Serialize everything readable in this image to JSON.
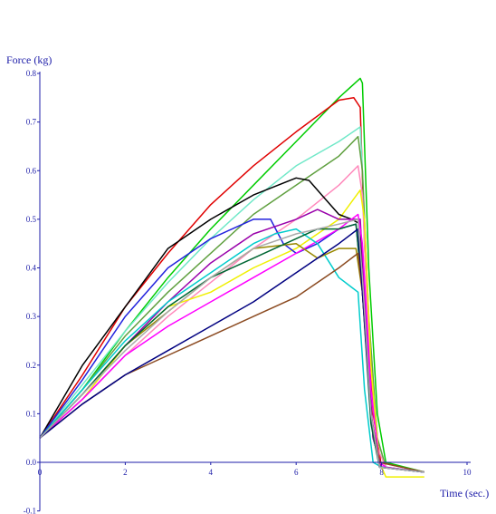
{
  "chart_data": {
    "type": "line",
    "ylabel": "Force    (kg)",
    "xlabel": "Time (sec.)",
    "xlim": [
      0,
      10
    ],
    "ylim": [
      -0.1,
      0.8
    ],
    "x_ticks": [
      "0",
      "2",
      "4",
      "6",
      "8",
      "10"
    ],
    "y_ticks": [
      "-0.1",
      "0.0",
      "0.1",
      "0.2",
      "0.3",
      "0.4",
      "0.5",
      "0.6",
      "0.7",
      "0.8"
    ],
    "grid": false,
    "legend": "none",
    "axis_color": "#1c1ca8",
    "series": [
      {
        "color": "#00cc00",
        "points": [
          [
            0,
            0.05
          ],
          [
            1,
            0.15
          ],
          [
            2,
            0.27
          ],
          [
            3,
            0.38
          ],
          [
            4,
            0.48
          ],
          [
            5,
            0.57
          ],
          [
            6,
            0.66
          ],
          [
            7,
            0.75
          ],
          [
            7.5,
            0.79
          ],
          [
            7.55,
            0.78
          ],
          [
            7.7,
            0.4
          ],
          [
            7.9,
            0.1
          ],
          [
            8.1,
            0.0
          ],
          [
            9,
            -0.02
          ]
        ]
      },
      {
        "color": "#e00000",
        "points": [
          [
            0,
            0.05
          ],
          [
            1,
            0.18
          ],
          [
            2,
            0.32
          ],
          [
            3,
            0.43
          ],
          [
            4,
            0.53
          ],
          [
            5,
            0.61
          ],
          [
            6,
            0.68
          ],
          [
            7,
            0.745
          ],
          [
            7.35,
            0.75
          ],
          [
            7.5,
            0.73
          ],
          [
            7.6,
            0.45
          ],
          [
            7.8,
            0.1
          ],
          [
            8,
            -0.01
          ],
          [
            9,
            -0.02
          ]
        ]
      },
      {
        "color": "#70e8c8",
        "points": [
          [
            0,
            0.05
          ],
          [
            1,
            0.16
          ],
          [
            2,
            0.27
          ],
          [
            3,
            0.37
          ],
          [
            4,
            0.46
          ],
          [
            5,
            0.54
          ],
          [
            6,
            0.61
          ],
          [
            7,
            0.66
          ],
          [
            7.5,
            0.69
          ],
          [
            7.55,
            0.6
          ],
          [
            7.7,
            0.3
          ],
          [
            7.9,
            0.05
          ],
          [
            8.1,
            -0.01
          ],
          [
            9,
            -0.02
          ]
        ]
      },
      {
        "color": "#60a040",
        "points": [
          [
            0,
            0.05
          ],
          [
            1,
            0.15
          ],
          [
            2,
            0.26
          ],
          [
            3,
            0.35
          ],
          [
            4,
            0.43
          ],
          [
            5,
            0.51
          ],
          [
            6,
            0.57
          ],
          [
            7,
            0.63
          ],
          [
            7.45,
            0.67
          ],
          [
            7.55,
            0.6
          ],
          [
            7.7,
            0.3
          ],
          [
            7.9,
            0.05
          ],
          [
            8.1,
            -0.01
          ],
          [
            9,
            -0.02
          ]
        ]
      },
      {
        "color": "#ff88bb",
        "points": [
          [
            0,
            0.05
          ],
          [
            1,
            0.13
          ],
          [
            2,
            0.22
          ],
          [
            3,
            0.3
          ],
          [
            4,
            0.37
          ],
          [
            5,
            0.44
          ],
          [
            6,
            0.5
          ],
          [
            7,
            0.57
          ],
          [
            7.45,
            0.61
          ],
          [
            7.55,
            0.55
          ],
          [
            7.7,
            0.25
          ],
          [
            7.9,
            0.03
          ],
          [
            8.1,
            -0.01
          ],
          [
            9,
            -0.02
          ]
        ]
      },
      {
        "color": "#f0f000",
        "points": [
          [
            0,
            0.05
          ],
          [
            1,
            0.13
          ],
          [
            2,
            0.24
          ],
          [
            3,
            0.32
          ],
          [
            4,
            0.35
          ],
          [
            5,
            0.4
          ],
          [
            6,
            0.44
          ],
          [
            7,
            0.5
          ],
          [
            7.5,
            0.56
          ],
          [
            7.6,
            0.5
          ],
          [
            7.75,
            0.2
          ],
          [
            7.95,
            0.0
          ],
          [
            8.1,
            -0.03
          ],
          [
            9,
            -0.03
          ]
        ]
      },
      {
        "color": "#000000",
        "points": [
          [
            0,
            0.05
          ],
          [
            1,
            0.2
          ],
          [
            2,
            0.32
          ],
          [
            3,
            0.44
          ],
          [
            4,
            0.5
          ],
          [
            5,
            0.55
          ],
          [
            6,
            0.585
          ],
          [
            6.3,
            0.58
          ],
          [
            6.6,
            0.55
          ],
          [
            7,
            0.51
          ],
          [
            7.3,
            0.5
          ],
          [
            7.5,
            0.49
          ],
          [
            7.6,
            0.3
          ],
          [
            7.8,
            0.05
          ],
          [
            8,
            -0.01
          ],
          [
            9,
            -0.02
          ]
        ]
      },
      {
        "color": "#2222dd",
        "points": [
          [
            0,
            0.05
          ],
          [
            1,
            0.17
          ],
          [
            2,
            0.3
          ],
          [
            3,
            0.4
          ],
          [
            4,
            0.46
          ],
          [
            5,
            0.5
          ],
          [
            5.4,
            0.5
          ],
          [
            5.7,
            0.45
          ],
          [
            6,
            0.43
          ],
          [
            6.5,
            0.45
          ],
          [
            7,
            0.48
          ],
          [
            7.4,
            0.49
          ],
          [
            7.55,
            0.35
          ],
          [
            7.8,
            0.05
          ],
          [
            8,
            -0.01
          ],
          [
            9,
            -0.02
          ]
        ]
      },
      {
        "color": "#9900aa",
        "points": [
          [
            0,
            0.05
          ],
          [
            1,
            0.14
          ],
          [
            2,
            0.24
          ],
          [
            3,
            0.33
          ],
          [
            4,
            0.41
          ],
          [
            5,
            0.47
          ],
          [
            6,
            0.5
          ],
          [
            6.5,
            0.52
          ],
          [
            7,
            0.5
          ],
          [
            7.3,
            0.5
          ],
          [
            7.5,
            0.5
          ],
          [
            7.6,
            0.35
          ],
          [
            7.8,
            0.05
          ],
          [
            8,
            -0.01
          ],
          [
            9,
            -0.02
          ]
        ]
      },
      {
        "color": "#ff00ff",
        "points": [
          [
            0,
            0.05
          ],
          [
            1,
            0.13
          ],
          [
            2,
            0.22
          ],
          [
            3,
            0.28
          ],
          [
            4,
            0.33
          ],
          [
            5,
            0.38
          ],
          [
            6,
            0.43
          ],
          [
            7,
            0.48
          ],
          [
            7.45,
            0.51
          ],
          [
            7.55,
            0.45
          ],
          [
            7.75,
            0.15
          ],
          [
            7.95,
            0.0
          ],
          [
            8.1,
            -0.01
          ],
          [
            9,
            -0.02
          ]
        ]
      },
      {
        "color": "#00cccc",
        "points": [
          [
            0,
            0.05
          ],
          [
            1,
            0.15
          ],
          [
            2,
            0.25
          ],
          [
            3,
            0.33
          ],
          [
            4,
            0.39
          ],
          [
            5,
            0.45
          ],
          [
            5.5,
            0.47
          ],
          [
            6,
            0.48
          ],
          [
            6.5,
            0.45
          ],
          [
            7,
            0.38
          ],
          [
            7.3,
            0.36
          ],
          [
            7.45,
            0.35
          ],
          [
            7.6,
            0.15
          ],
          [
            7.8,
            0.0
          ],
          [
            8,
            -0.01
          ],
          [
            9,
            -0.02
          ]
        ]
      },
      {
        "color": "#998800",
        "points": [
          [
            0,
            0.05
          ],
          [
            1,
            0.14
          ],
          [
            2,
            0.24
          ],
          [
            3,
            0.31
          ],
          [
            4,
            0.38
          ],
          [
            5,
            0.44
          ],
          [
            6,
            0.45
          ],
          [
            6.5,
            0.42
          ],
          [
            7,
            0.44
          ],
          [
            7.4,
            0.44
          ],
          [
            7.55,
            0.35
          ],
          [
            7.75,
            0.1
          ],
          [
            7.95,
            0.0
          ],
          [
            9,
            -0.02
          ]
        ]
      },
      {
        "color": "#006633",
        "points": [
          [
            0,
            0.05
          ],
          [
            1,
            0.14
          ],
          [
            2,
            0.24
          ],
          [
            3,
            0.32
          ],
          [
            4,
            0.38
          ],
          [
            5,
            0.42
          ],
          [
            6,
            0.46
          ],
          [
            6.5,
            0.48
          ],
          [
            7,
            0.48
          ],
          [
            7.4,
            0.49
          ],
          [
            7.55,
            0.35
          ],
          [
            7.75,
            0.08
          ],
          [
            7.95,
            -0.01
          ],
          [
            9,
            -0.02
          ]
        ]
      },
      {
        "color": "#8b4a20",
        "points": [
          [
            0,
            0.05
          ],
          [
            1,
            0.12
          ],
          [
            2,
            0.18
          ],
          [
            3,
            0.22
          ],
          [
            4,
            0.26
          ],
          [
            5,
            0.3
          ],
          [
            6,
            0.34
          ],
          [
            7,
            0.4
          ],
          [
            7.45,
            0.43
          ],
          [
            7.55,
            0.35
          ],
          [
            7.75,
            0.1
          ],
          [
            7.95,
            0.0
          ],
          [
            9,
            -0.02
          ]
        ]
      },
      {
        "color": "#000080",
        "points": [
          [
            0,
            0.05
          ],
          [
            1,
            0.12
          ],
          [
            2,
            0.18
          ],
          [
            3,
            0.23
          ],
          [
            4,
            0.28
          ],
          [
            5,
            0.33
          ],
          [
            6,
            0.39
          ],
          [
            7,
            0.45
          ],
          [
            7.45,
            0.48
          ],
          [
            7.55,
            0.35
          ],
          [
            7.75,
            0.1
          ],
          [
            7.95,
            -0.01
          ],
          [
            9,
            -0.02
          ]
        ]
      },
      {
        "color": "#aaaaaa",
        "points": [
          [
            0,
            0.05
          ],
          [
            1,
            0.14
          ],
          [
            2,
            0.23
          ],
          [
            3,
            0.31
          ],
          [
            4,
            0.38
          ],
          [
            5,
            0.44
          ],
          [
            6,
            0.47
          ],
          [
            7,
            0.49
          ],
          [
            7.45,
            0.5
          ],
          [
            7.55,
            0.38
          ],
          [
            7.75,
            0.1
          ],
          [
            7.95,
            -0.01
          ],
          [
            9,
            -0.02
          ]
        ]
      }
    ]
  }
}
